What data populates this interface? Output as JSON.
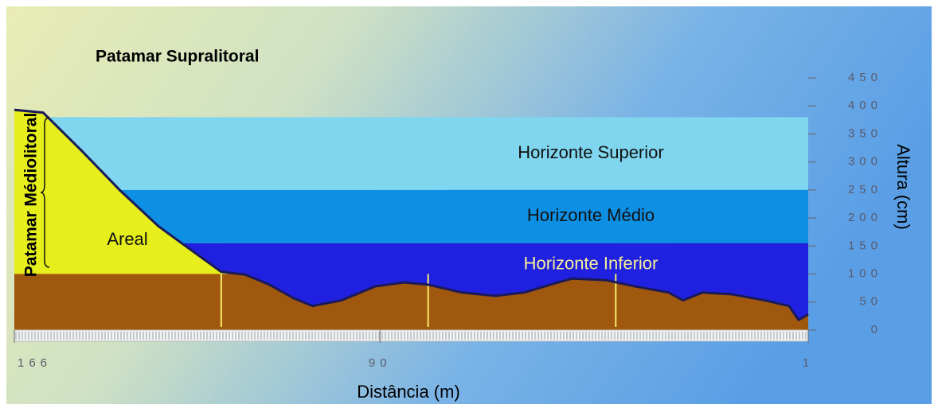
{
  "chart_data": {
    "type": "profile",
    "title": "Patamar Supralitoral",
    "side_label": "Patamar Médiolitoral",
    "area_label": "Areal",
    "xlabel": "Distância (m)",
    "ylabel": "Altura (cm)",
    "xlim": [
      166,
      1
    ],
    "xticks": [
      166,
      90,
      1
    ],
    "ylim": [
      0,
      450
    ],
    "yticks": [
      0,
      50,
      100,
      150,
      200,
      250,
      300,
      350,
      400,
      450
    ],
    "x": [
      166,
      160,
      152,
      144,
      136,
      128,
      123,
      118,
      113,
      108,
      104,
      98,
      91,
      85,
      80,
      73,
      66,
      60,
      53,
      50,
      43,
      37,
      30,
      27,
      23,
      17,
      10,
      5,
      3,
      1
    ],
    "values": [
      393,
      388,
      320,
      249,
      185,
      135,
      104,
      99,
      81,
      57,
      43,
      53,
      78,
      85,
      81,
      67,
      61,
      67,
      85,
      92,
      89,
      78,
      67,
      53,
      67,
      64,
      53,
      43,
      18,
      28
    ],
    "color": "#1a1a5a",
    "base_level": 100,
    "sand_color": "#e6ee1c",
    "soil_color": "#a0570e",
    "stakes": [
      123,
      80,
      41
    ],
    "stake_color": "#f4ee6a",
    "bands": [
      {
        "label": "Horizonte Superior",
        "range": [
          250,
          380
        ],
        "color": "#7fd6ee",
        "label_color": "#111111"
      },
      {
        "label": "Horizonte Médio",
        "range": [
          155,
          250
        ],
        "color": "#0d8fe4",
        "label_color": "#111111"
      },
      {
        "label": "Horizonte Inferior",
        "range": [
          0,
          155
        ],
        "color": "#2020e0",
        "label_color": "#f6f09a"
      }
    ]
  }
}
